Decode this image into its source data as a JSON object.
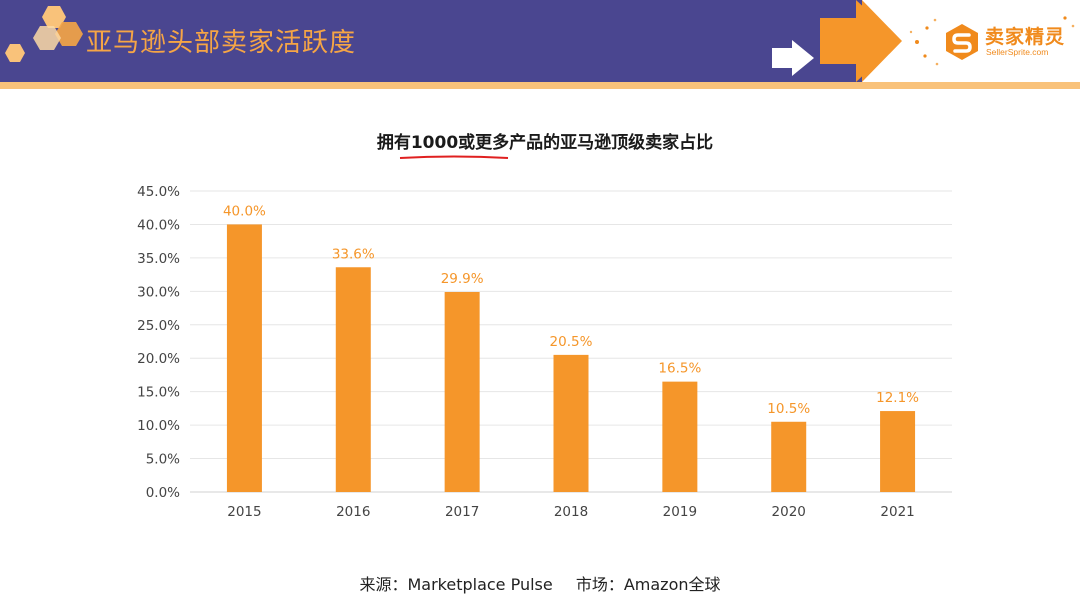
{
  "header": {
    "title": "亚马逊头部卖家活跃度",
    "logo_name": "卖家精灵",
    "logo_sub": "SellerSprite.com"
  },
  "colors": {
    "header_bg": "#4a4690",
    "accent": "#f6a545",
    "bar": "#f5962a",
    "label": "#f5962a"
  },
  "chart_data": {
    "type": "bar",
    "title": "拥有1000或更多产品的亚马逊顶级卖家占比",
    "categories": [
      "2015",
      "2016",
      "2017",
      "2018",
      "2019",
      "2020",
      "2021"
    ],
    "values": [
      40.0,
      33.6,
      29.9,
      20.5,
      16.5,
      10.5,
      12.1
    ],
    "value_labels": [
      "40.0%",
      "33.6%",
      "29.9%",
      "20.5%",
      "16.5%",
      "10.5%",
      "12.1%"
    ],
    "yticks": [
      "0.0%",
      "5.0%",
      "10.0%",
      "15.0%",
      "20.0%",
      "25.0%",
      "30.0%",
      "35.0%",
      "40.0%",
      "45.0%"
    ],
    "ylim": [
      0,
      45
    ],
    "grid": true,
    "legend": "none",
    "xlabel": "",
    "ylabel": ""
  },
  "source": {
    "label": "来源：Marketplace Pulse",
    "market": "市场：Amazon全球"
  }
}
